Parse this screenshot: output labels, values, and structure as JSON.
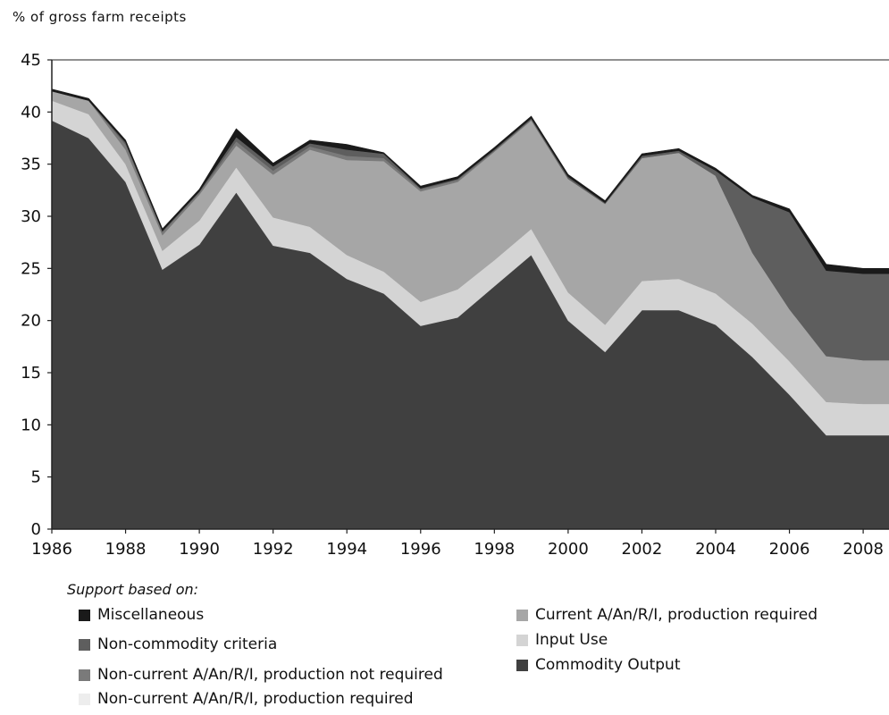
{
  "chart_data": {
    "type": "area",
    "stacked": true,
    "ylabel": "% of gross farm receipts",
    "ylim": [
      0,
      45
    ],
    "yticks": [
      "0",
      "5",
      "10",
      "15",
      "20",
      "25",
      "30",
      "35",
      "40",
      "45"
    ],
    "xlim": [
      1986,
      2008.7
    ],
    "xticks": [
      "1986",
      "1988",
      "1990",
      "1992",
      "1994",
      "1996",
      "1998",
      "2000",
      "2002",
      "2004",
      "2006",
      "2008"
    ],
    "grid": false,
    "legend_title": "Support based on:",
    "legend_position": "bottom",
    "x": [
      1986,
      1987,
      1988,
      1989,
      1990,
      1991,
      1992,
      1993,
      1994,
      1995,
      1996,
      1997,
      1998,
      1999,
      2000,
      2001,
      2002,
      2003,
      2004,
      2005,
      2006,
      2007,
      2008
    ],
    "series": [
      {
        "name": "Commodity Output",
        "color": "#404040",
        "values": [
          39.2,
          37.5,
          33.3,
          24.9,
          27.3,
          32.3,
          27.2,
          26.5,
          24.0,
          22.6,
          19.5,
          20.3,
          23.3,
          26.3,
          20.0,
          17.0,
          21.0,
          21.0,
          19.6,
          16.5,
          12.9,
          9.0,
          9.0
        ]
      },
      {
        "name": "Input Use",
        "color": "#d4d4d4",
        "values": [
          1.9,
          2.3,
          1.7,
          1.8,
          2.3,
          2.4,
          2.7,
          2.5,
          2.3,
          2.1,
          2.3,
          2.7,
          2.5,
          2.5,
          2.7,
          2.6,
          2.8,
          3.0,
          3.0,
          3.2,
          3.2,
          3.2,
          3.0
        ]
      },
      {
        "name": "Non-current A/An/R/I, production required",
        "color": "#ededed",
        "values": [
          0,
          0,
          0,
          0,
          0,
          0,
          0,
          0,
          0,
          0,
          0,
          0,
          0,
          0,
          0,
          0,
          0,
          0,
          0,
          0,
          0,
          0,
          0
        ]
      },
      {
        "name": "Current A/An/R/I, production required",
        "color": "#a6a6a6",
        "values": [
          0.9,
          1.3,
          1.4,
          1.5,
          2.5,
          2.1,
          4.1,
          7.4,
          9.1,
          10.6,
          10.6,
          10.3,
          10.4,
          10.4,
          10.9,
          11.6,
          11.8,
          12.1,
          11.3,
          6.8,
          5.0,
          4.4,
          4.2
        ]
      },
      {
        "name": "Non-current A/An/R/I, production not required",
        "color": "#7a7a7a",
        "values": [
          0,
          0,
          0.5,
          0.3,
          0.2,
          0.4,
          0.4,
          0.3,
          0.4,
          0.3,
          0.2,
          0.2,
          0.1,
          0.1,
          0,
          0,
          0,
          0,
          0,
          0,
          0,
          0,
          0
        ]
      },
      {
        "name": "Non-commodity criteria",
        "color": "#5e5e5e",
        "values": [
          0,
          0,
          0.2,
          0.1,
          0.1,
          0.4,
          0.4,
          0.3,
          0.6,
          0.4,
          0.1,
          0.1,
          0.1,
          0.1,
          0.2,
          0.1,
          0.2,
          0.2,
          0.5,
          5.3,
          9.3,
          8.2,
          8.3
        ]
      },
      {
        "name": "Miscellaneous",
        "color": "#1a1a1a",
        "values": [
          0.2,
          0.2,
          0.2,
          0.2,
          0.2,
          0.8,
          0.3,
          0.3,
          0.5,
          0.1,
          0.2,
          0.2,
          0.2,
          0.2,
          0.2,
          0.2,
          0.2,
          0.2,
          0.2,
          0.2,
          0.3,
          0.6,
          0.5
        ]
      }
    ]
  },
  "legend_items": [
    {
      "label": "Miscellaneous",
      "color": "#1a1a1a"
    },
    {
      "label": "Non-commodity criteria",
      "color": "#5e5e5e"
    },
    {
      "label": "Non-current A/An/R/I, production not required",
      "color": "#7a7a7a"
    },
    {
      "label": "Non-current A/An/R/I, production required",
      "color": "#ededed"
    },
    {
      "label": "Current A/An/R/I, production required",
      "color": "#a6a6a6"
    },
    {
      "label": "Input Use",
      "color": "#d4d4d4"
    },
    {
      "label": "Commodity Output",
      "color": "#404040"
    }
  ]
}
